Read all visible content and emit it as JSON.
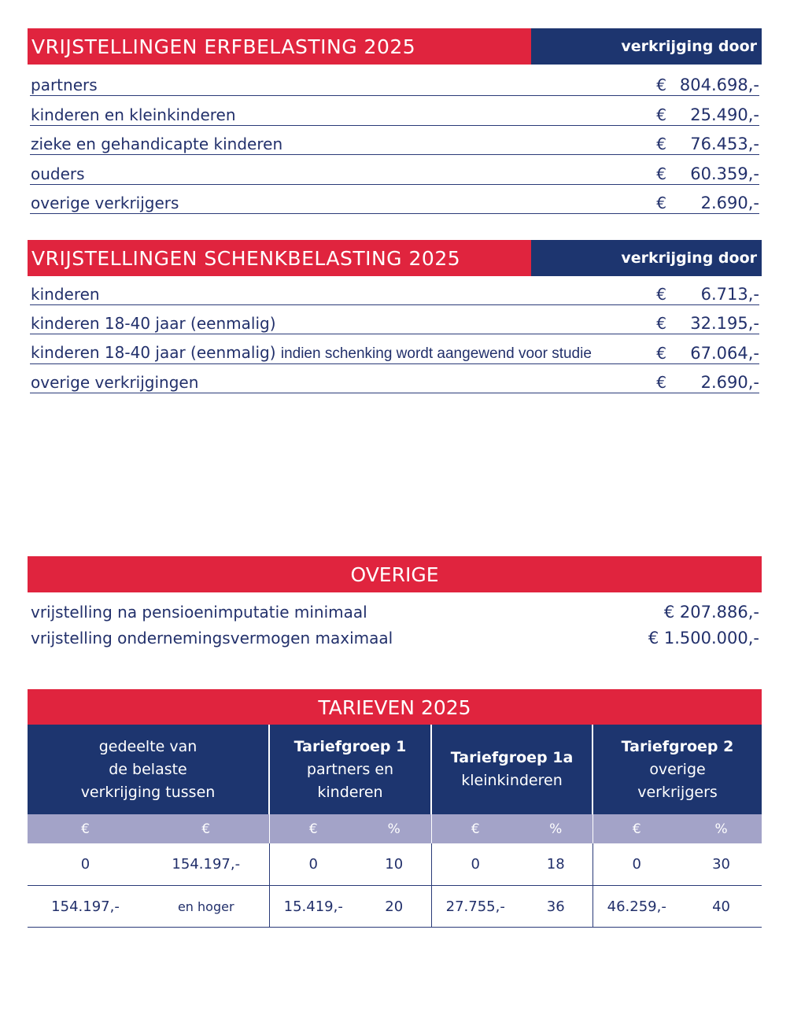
{
  "erf": {
    "title": "VRIJSTELLINGEN ERFBELASTING 2025",
    "column": "verkrijging door",
    "rows": [
      {
        "label": "partners",
        "currency": "€",
        "value": "804.698,-"
      },
      {
        "label": "kinderen en kleinkinderen",
        "currency": "€",
        "value": "25.490,-"
      },
      {
        "label": "zieke en gehandicapte kinderen",
        "currency": "€",
        "value": "76.453,-"
      },
      {
        "label": "ouders",
        "currency": "€",
        "value": "60.359,-"
      },
      {
        "label": "overige verkrijgers",
        "currency": "€",
        "value": "2.690,-"
      }
    ]
  },
  "schenk": {
    "title": "VRIJSTELLINGEN SCHENKBELASTING 2025",
    "column": "verkrijging door",
    "rows": [
      {
        "label": "kinderen",
        "note": "",
        "currency": "€",
        "value": "6.713,-"
      },
      {
        "label": "kinderen 18-40 jaar (eenmalig)",
        "note": "",
        "currency": "€",
        "value": "32.195,-"
      },
      {
        "label": "kinderen 18-40 jaar (eenmalig)",
        "note": "indien schenking wordt aangewend voor studie",
        "currency": "€",
        "value": "67.064,-"
      },
      {
        "label": "overige verkrijgingen",
        "note": "",
        "currency": "€",
        "value": "2.690,-"
      }
    ]
  },
  "overige": {
    "title": "OVERIGE",
    "rows": [
      {
        "label": "vrijstelling na pensioenimputatie minimaal",
        "value": "€ 207.886,-"
      },
      {
        "label": "vrijstelling ondernemingsvermogen maximaal",
        "value": "€ 1.500.000,-"
      }
    ]
  },
  "tarieven": {
    "title": "TARIEVEN 2025",
    "headers": [
      {
        "bold": "",
        "lines": [
          "gedeelte van",
          "de belaste",
          "verkrijging tussen"
        ]
      },
      {
        "bold": "Tariefgroep 1",
        "lines": [
          "partners en",
          "kinderen"
        ]
      },
      {
        "bold": "Tariefgroep 1a",
        "lines": [
          "kleinkinderen"
        ]
      },
      {
        "bold": "Tariefgroep 2",
        "lines": [
          "overige",
          "verkrijgers"
        ]
      }
    ],
    "subheaders": [
      "€",
      "€",
      "€",
      "%",
      "€",
      "%",
      "€",
      "%"
    ],
    "rows": [
      [
        "0",
        "154.197,-",
        "0",
        "10",
        "0",
        "18",
        "0",
        "30"
      ],
      [
        "154.197,-",
        "en hoger",
        "15.419,-",
        "20",
        "27.755,-",
        "36",
        "46.259,-",
        "40"
      ]
    ]
  },
  "colors": {
    "red": "#e0243e",
    "navy": "#1d356f",
    "lavender": "#a3a3c8",
    "text": "#22306b"
  }
}
